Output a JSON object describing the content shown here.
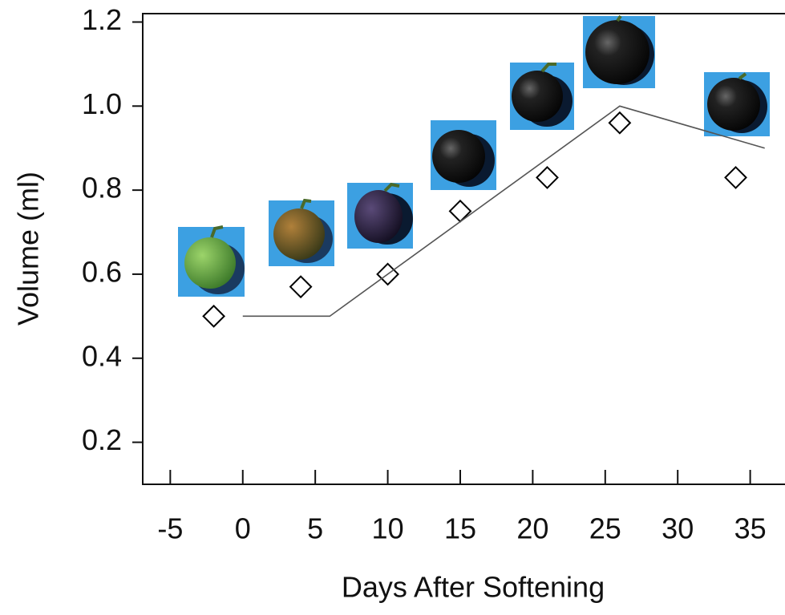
{
  "chart_data": {
    "type": "scatter",
    "xlabel": "Days After Softening",
    "ylabel": "Volume (ml)",
    "xlim": [
      -6.9,
      37.4
    ],
    "ylim": [
      0.1,
      1.22
    ],
    "xticks": [
      -5,
      0,
      5,
      10,
      15,
      20,
      25,
      30,
      35
    ],
    "yticks": [
      0.2,
      0.4,
      0.6,
      0.8,
      {
        "value": 1,
        "label": "1.0"
      },
      1.2
    ],
    "series": [
      {
        "type": "scatter",
        "marker": "diamond",
        "color": "#000000",
        "x": [
          -2,
          4,
          10,
          15,
          21,
          26,
          34
        ],
        "values": [
          0.5,
          0.57,
          0.6,
          0.75,
          0.83,
          0.96,
          0.83
        ]
      },
      {
        "type": "line",
        "color": "#555555",
        "x": [
          0,
          6,
          26,
          36
        ],
        "values": [
          0.5,
          0.5,
          1.0,
          0.9
        ]
      }
    ]
  }
}
